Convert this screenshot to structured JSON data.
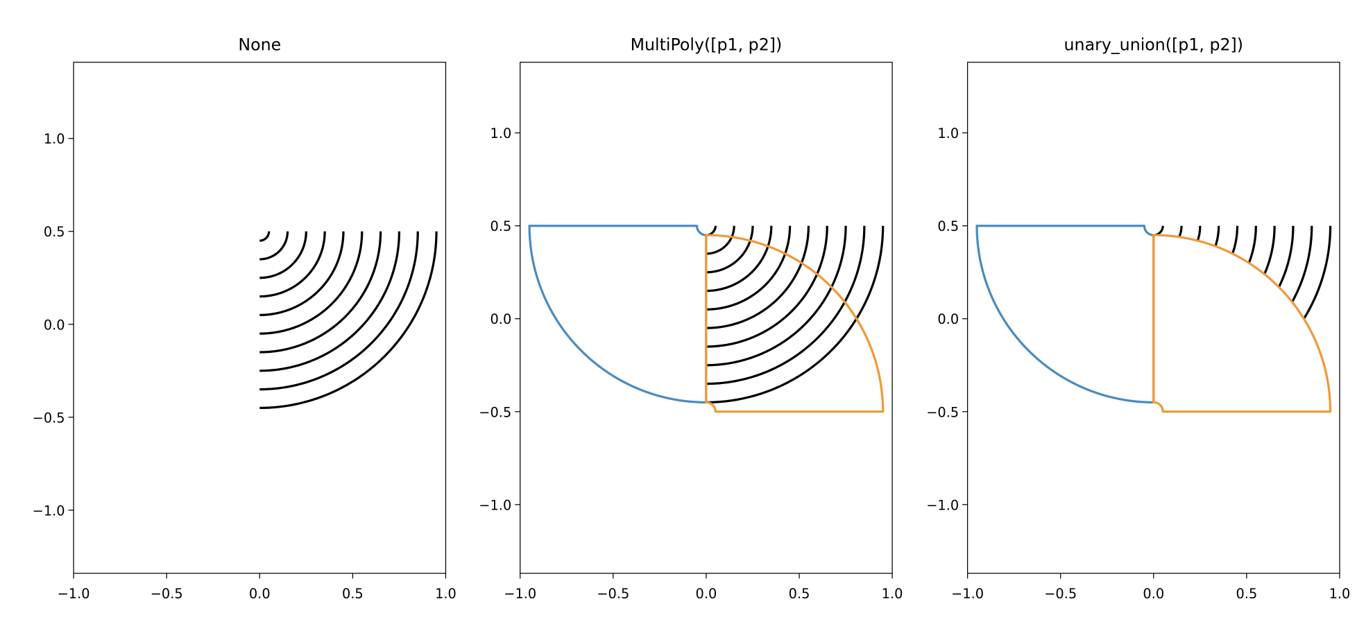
{
  "chart_data": [
    {
      "type": "geometry",
      "title": "None",
      "xlim": [
        -1.0,
        1.0
      ],
      "ylim": [
        -1.34,
        1.41
      ],
      "xticks": [
        {
          "value": -1.0,
          "label": "−1.0"
        },
        {
          "value": -0.5,
          "label": "−0.5"
        },
        {
          "value": 0.0,
          "label": "0.0"
        },
        {
          "value": 0.5,
          "label": "0.5"
        },
        {
          "value": 1.0,
          "label": "1.0"
        }
      ],
      "yticks": [
        {
          "value": -1.0,
          "label": "−1.0"
        },
        {
          "value": -0.5,
          "label": "−0.5"
        },
        {
          "value": 0.0,
          "label": "0.0"
        },
        {
          "value": 0.5,
          "label": "0.5"
        },
        {
          "value": 1.0,
          "label": "1.0"
        }
      ],
      "arcs": {
        "color": "#000000",
        "center": [
          0,
          0.5
        ],
        "radii": [
          0.05,
          0.15,
          0.25,
          0.35,
          0.45,
          0.55,
          0.65,
          0.75,
          0.85,
          0.95
        ],
        "start_angle": 0,
        "end_angle": -90
      }
    },
    {
      "type": "geometry",
      "title": "MultiPoly([p1, p2])",
      "xlim": [
        -1.0,
        1.0
      ],
      "ylim": [
        -1.37,
        1.38
      ],
      "xticks": [
        {
          "value": -1.0,
          "label": "−1.0"
        },
        {
          "value": -0.5,
          "label": "−0.5"
        },
        {
          "value": 0.0,
          "label": "0.0"
        },
        {
          "value": 0.5,
          "label": "0.5"
        },
        {
          "value": 1.0,
          "label": "1.0"
        }
      ],
      "yticks": [
        {
          "value": -1.0,
          "label": "−1.0"
        },
        {
          "value": -0.5,
          "label": "−0.5"
        },
        {
          "value": 0.0,
          "label": "0.0"
        },
        {
          "value": 0.5,
          "label": "0.5"
        },
        {
          "value": 1.0,
          "label": "1.0"
        }
      ],
      "arcs": {
        "color": "#000000",
        "center": [
          0,
          0.5
        ],
        "radii": [
          0.05,
          0.15,
          0.25,
          0.35,
          0.45,
          0.55,
          0.65,
          0.75,
          0.85,
          0.95
        ],
        "start_angle": 0,
        "end_angle": -90
      },
      "polygons": [
        {
          "color": "#4b8bbf",
          "center": [
            0,
            0.5
          ],
          "inner_radius": 0.05,
          "outer_radius": 0.95,
          "start_angle": 180,
          "end_angle": 270
        },
        {
          "color": "#f0993a",
          "center": [
            0,
            -0.5
          ],
          "inner_radius": 0.05,
          "outer_radius": 0.95,
          "start_angle": 0,
          "end_angle": 90
        }
      ]
    },
    {
      "type": "geometry",
      "title": "unary_union([p1, p2])",
      "xlim": [
        -1.0,
        1.0
      ],
      "ylim": [
        -1.37,
        1.38
      ],
      "xticks": [
        {
          "value": -1.0,
          "label": "−1.0"
        },
        {
          "value": -0.5,
          "label": "−0.5"
        },
        {
          "value": 0.0,
          "label": "0.0"
        },
        {
          "value": 0.5,
          "label": "0.5"
        },
        {
          "value": 1.0,
          "label": "1.0"
        }
      ],
      "yticks": [
        {
          "value": -1.0,
          "label": "−1.0"
        },
        {
          "value": -0.5,
          "label": "−0.5"
        },
        {
          "value": 0.0,
          "label": "0.0"
        },
        {
          "value": 0.5,
          "label": "0.5"
        },
        {
          "value": 1.0,
          "label": "1.0"
        }
      ],
      "arcs": {
        "color": "#000000",
        "center": [
          0,
          0.5
        ],
        "radii": [
          0.05,
          0.15,
          0.25,
          0.35,
          0.45,
          0.55,
          0.65,
          0.75,
          0.85,
          0.95
        ],
        "start_angle": 0,
        "end_angle": -90,
        "clip_outside_circle": {
          "center": [
            0,
            -0.5
          ],
          "radius": 0.95
        }
      },
      "polygons": [
        {
          "color": "#4b8bbf",
          "center": [
            0,
            0.5
          ],
          "inner_radius": 0.05,
          "outer_radius": 0.95,
          "start_angle": 180,
          "end_angle": 270
        },
        {
          "color": "#f0993a",
          "center": [
            0,
            -0.5
          ],
          "inner_radius": 0.05,
          "outer_radius": 0.95,
          "start_angle": 0,
          "end_angle": 90
        }
      ]
    }
  ]
}
